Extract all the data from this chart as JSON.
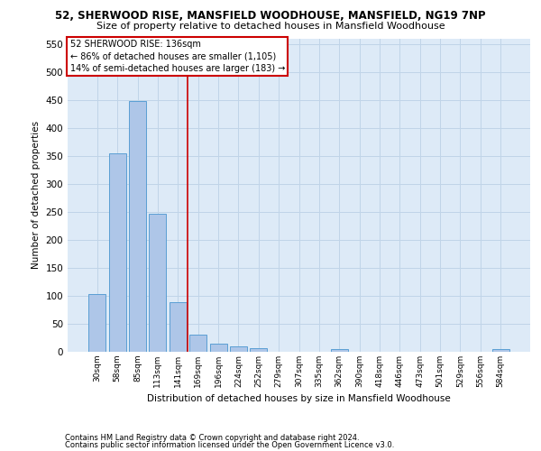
{
  "title_line1": "52, SHERWOOD RISE, MANSFIELD WOODHOUSE, MANSFIELD, NG19 7NP",
  "title_line2": "Size of property relative to detached houses in Mansfield Woodhouse",
  "xlabel": "Distribution of detached houses by size in Mansfield Woodhouse",
  "ylabel": "Number of detached properties",
  "footnote1": "Contains HM Land Registry data © Crown copyright and database right 2024.",
  "footnote2": "Contains public sector information licensed under the Open Government Licence v3.0.",
  "bar_labels": [
    "30sqm",
    "58sqm",
    "85sqm",
    "113sqm",
    "141sqm",
    "169sqm",
    "196sqm",
    "224sqm",
    "252sqm",
    "279sqm",
    "307sqm",
    "335sqm",
    "362sqm",
    "390sqm",
    "418sqm",
    "446sqm",
    "473sqm",
    "501sqm",
    "529sqm",
    "556sqm",
    "584sqm"
  ],
  "bar_values": [
    103,
    354,
    448,
    246,
    88,
    30,
    14,
    10,
    6,
    0,
    0,
    0,
    5,
    0,
    0,
    0,
    0,
    0,
    0,
    0,
    5
  ],
  "bar_color": "#aec6e8",
  "bar_edge_color": "#5a9fd4",
  "grid_color": "#c0d4e8",
  "background_color": "#ddeaf7",
  "vline_x": 4.5,
  "vline_color": "#cc0000",
  "annotation_line1": "52 SHERWOOD RISE: 136sqm",
  "annotation_line2": "← 86% of detached houses are smaller (1,105)",
  "annotation_line3": "14% of semi-detached houses are larger (183) →",
  "annotation_box_facecolor": "white",
  "annotation_box_edgecolor": "#cc0000",
  "ylim_max": 560,
  "yticks": [
    0,
    50,
    100,
    150,
    200,
    250,
    300,
    350,
    400,
    450,
    500,
    550
  ]
}
